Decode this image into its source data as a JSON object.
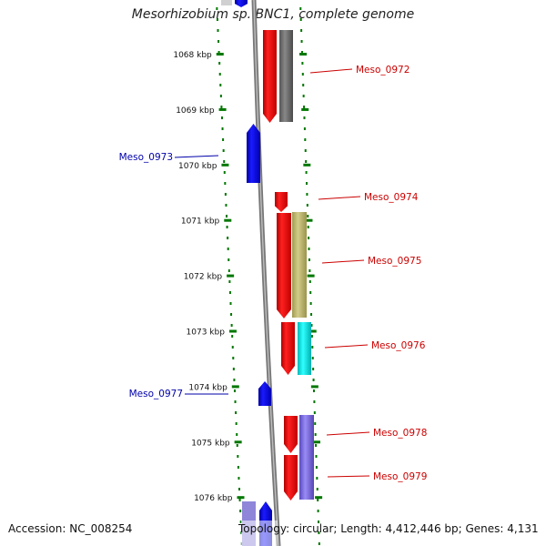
{
  "title": "Mesorhizobium sp. BNC1, complete genome",
  "ticks": [
    "1068 kbp",
    "1069 kbp",
    "1070 kbp",
    "1071 kbp",
    "1072 kbp",
    "1073 kbp",
    "1074 kbp",
    "1075 kbp",
    "1076 kbp"
  ],
  "genes": [
    {
      "label": "Meso_0972",
      "color": "#cc0000"
    },
    {
      "label": "Meso_0973",
      "color": "#0000aa"
    },
    {
      "label": "Meso_0974",
      "color": "#cc0000"
    },
    {
      "label": "Meso_0975",
      "color": "#cc0000"
    },
    {
      "label": "Meso_0976",
      "color": "#cc0000"
    },
    {
      "label": "Meso_0977",
      "color": "#0000aa"
    },
    {
      "label": "Meso_0978",
      "color": "#cc0000"
    },
    {
      "label": "Meso_0979",
      "color": "#cc0000"
    }
  ],
  "footer": {
    "accession": "Accession: NC_008254",
    "topology": "Topology: circular; Length: 4,412,446 bp; Genes: 4,131"
  },
  "colors": {
    "forward": "#ff0000",
    "reverse": "#0000ee",
    "backbone": "#888888",
    "ticks": "#007700",
    "cog_gray": "#707070",
    "cog_khaki": "#bdb76b",
    "cog_cyan": "#00e5e5",
    "cog_slate": "#7b68ee"
  }
}
